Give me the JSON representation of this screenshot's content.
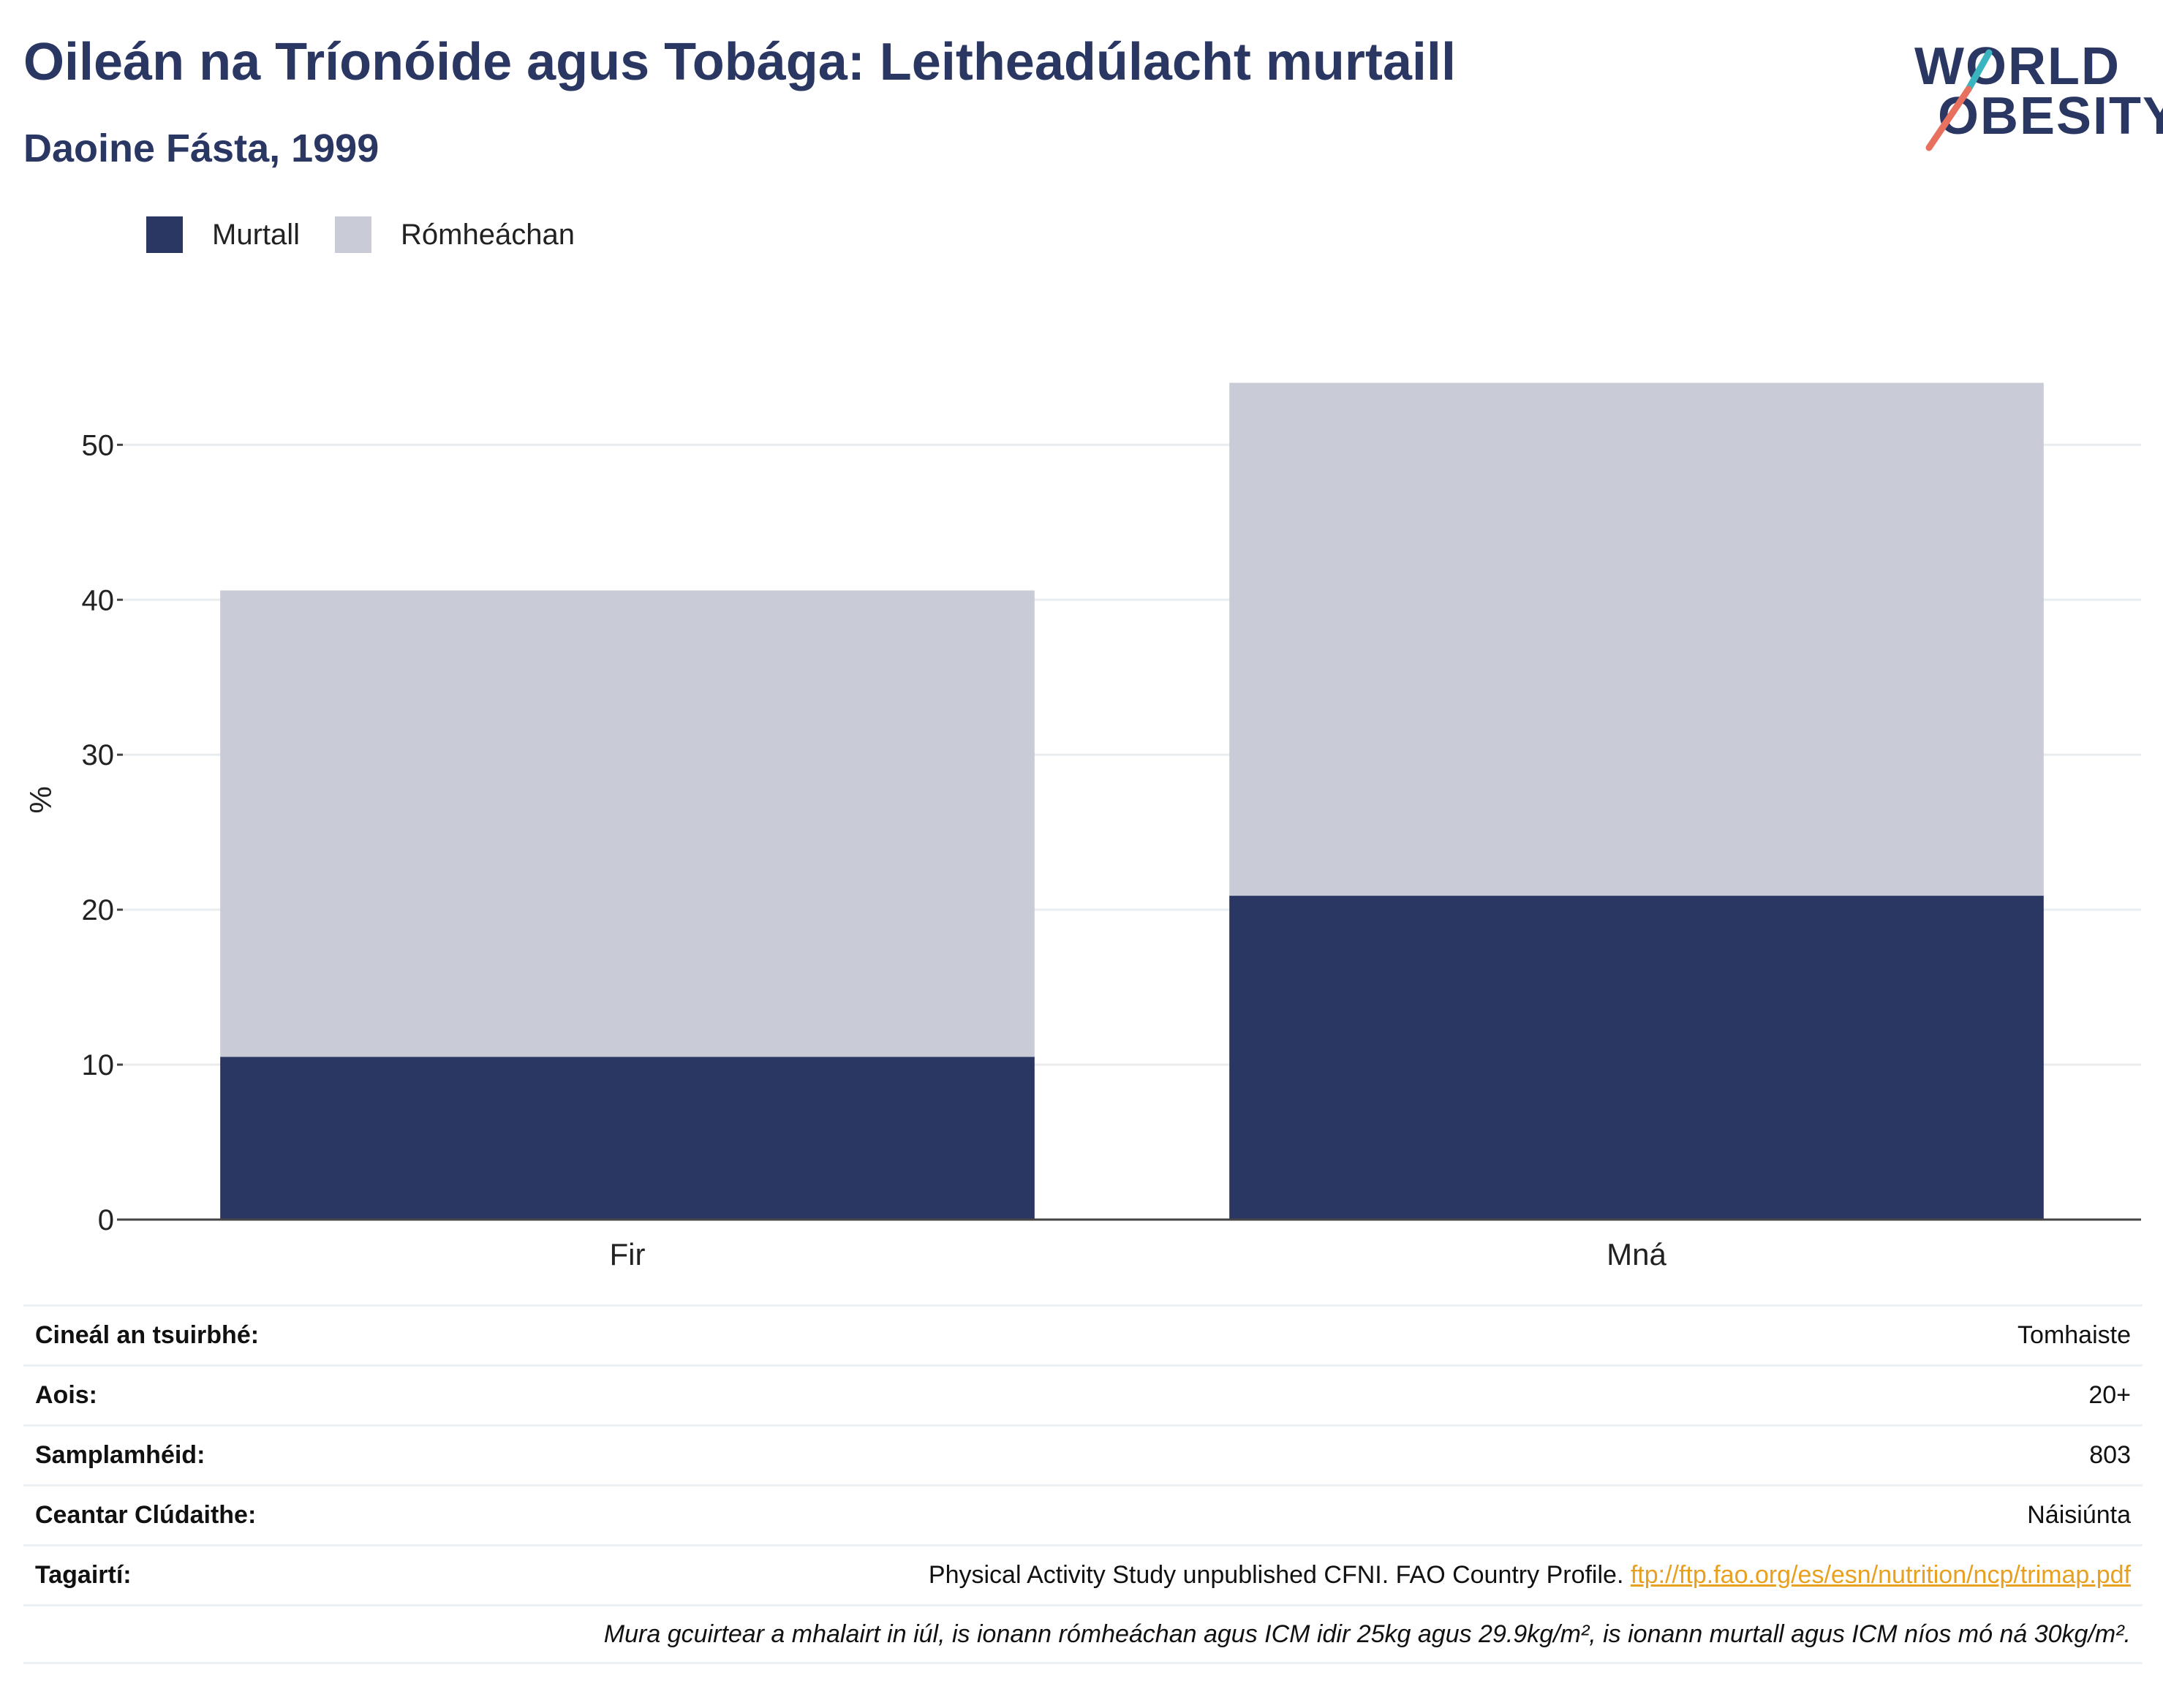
{
  "header": {
    "title": "Oileán na Tríonóide agus Tobága: Leitheadúlacht murtaill",
    "subtitle": "Daoine Fásta, 1999"
  },
  "logo": {
    "line1": "WORLD",
    "line2": "OBESITY",
    "accent_teal": "#3ab5c0",
    "accent_red": "#e8705f"
  },
  "legend": [
    {
      "label": "Murtall",
      "color": "#2a3763"
    },
    {
      "label": "Rómheáchan",
      "color": "#c9cbd7"
    }
  ],
  "chart_data": {
    "type": "bar",
    "stacked": true,
    "categories": [
      "Fir",
      "Mná"
    ],
    "series": [
      {
        "name": "Murtall",
        "values": [
          10.5,
          20.9
        ],
        "color": "#2a3763"
      },
      {
        "name": "Rómheáchan",
        "values": [
          30.1,
          33.1
        ],
        "color": "#c9cbd7"
      }
    ],
    "ylabel": "%",
    "ylim": [
      0,
      57
    ],
    "yticks": [
      0,
      10,
      20,
      30,
      40,
      50
    ],
    "grid": true,
    "legend_position": "top-left"
  },
  "info": {
    "survey_type": {
      "label": "Cineál an tsuirbhé:",
      "value": "Tomhaiste"
    },
    "age": {
      "label": "Aois:",
      "value": "20+"
    },
    "sample": {
      "label": "Samplamhéid:",
      "value": "803"
    },
    "area": {
      "label": "Ceantar Clúdaithe:",
      "value": "Náisiúnta"
    },
    "refs": {
      "label": "Tagairtí:",
      "text": "Physical Activity Study unpublished CFNI. FAO Country Profile. ",
      "link": "ftp://ftp.fao.org/es/esn/nutrition/ncp/trimap.pdf"
    },
    "note": "Mura gcuirtear a mhalairt in iúl, is ionann rómheáchan agus ICM idir 25kg agus 29.9kg/m², is ionann murtall agus ICM níos mó ná 30kg/m²."
  }
}
